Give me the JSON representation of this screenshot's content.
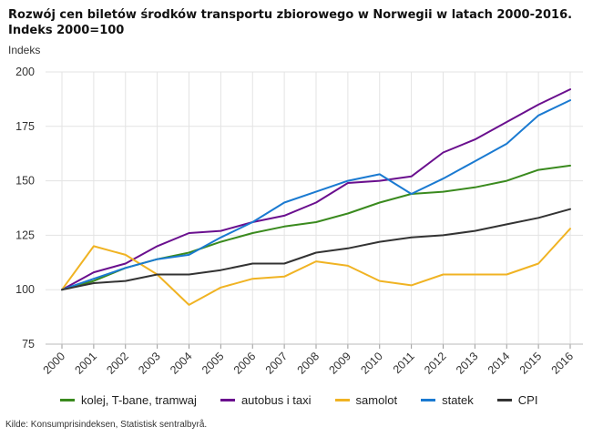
{
  "chart_data": {
    "type": "line",
    "title": "Rozwój cen biletów środków transportu zbiorowego w Norwegii w latach 2000-2016. Indeks 2000=100",
    "ylabel": "Indeks",
    "xlabel": "",
    "categories": [
      "2000",
      "2001",
      "2002",
      "2003",
      "2004",
      "2005",
      "2006",
      "2007",
      "2008",
      "2009",
      "2010",
      "2011",
      "2012",
      "2013",
      "2014",
      "2015",
      "2016"
    ],
    "ylim": [
      75,
      200
    ],
    "yticks": [
      75,
      100,
      125,
      150,
      175,
      200
    ],
    "grid": true,
    "legend_position": "bottom",
    "series": [
      {
        "name": "kolej, T-bane, tramwaj",
        "color": "#3a8a1e",
        "values": [
          100,
          104,
          110,
          114,
          117,
          122,
          126,
          129,
          131,
          135,
          140,
          144,
          145,
          147,
          150,
          155,
          157
        ]
      },
      {
        "name": "autobus i taxi",
        "color": "#6a0f8e",
        "values": [
          100,
          108,
          112,
          120,
          126,
          127,
          131,
          134,
          140,
          149,
          150,
          152,
          163,
          169,
          177,
          185,
          192
        ]
      },
      {
        "name": "samolot",
        "color": "#f0b323",
        "values": [
          100,
          120,
          116,
          107,
          93,
          101,
          105,
          106,
          113,
          111,
          104,
          102,
          107,
          107,
          107,
          112,
          128
        ]
      },
      {
        "name": "statek",
        "color": "#1a7ad1",
        "values": [
          100,
          105,
          110,
          114,
          116,
          124,
          131,
          140,
          145,
          150,
          153,
          144,
          151,
          159,
          167,
          180,
          187
        ]
      },
      {
        "name": "CPI",
        "color": "#333333",
        "values": [
          100,
          103,
          104,
          107,
          107,
          109,
          112,
          112,
          117,
          119,
          122,
          124,
          125,
          127,
          130,
          133,
          137
        ]
      }
    ]
  },
  "source": "Kilde: Konsumprisindeksen, Statistisk sentralbyrå."
}
